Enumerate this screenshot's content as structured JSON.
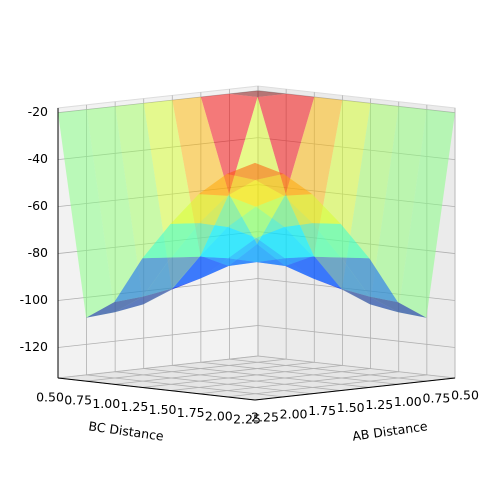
{
  "chart_data": {
    "type": "surface3d",
    "x_label": "AB Distance",
    "y_label": "BC Distance",
    "x": [
      0.5,
      0.75,
      1.0,
      1.25,
      1.5,
      1.75,
      2.0,
      2.25
    ],
    "y": [
      0.5,
      0.75,
      1.0,
      1.25,
      1.5,
      1.75,
      2.0,
      2.25
    ],
    "z": [
      [
        -20,
        -20,
        -20,
        -20,
        -20,
        -20,
        -20,
        -20
      ],
      [
        -20,
        -20,
        -60,
        -85,
        -98,
        -103,
        -105,
        -106
      ],
      [
        -20,
        -60,
        -80,
        -88,
        -92,
        -95,
        -97,
        -98
      ],
      [
        -20,
        -85,
        -88,
        -85,
        -82,
        -80,
        -79,
        -78
      ],
      [
        -20,
        -98,
        -92,
        -82,
        -72,
        -66,
        -63,
        -62
      ],
      [
        -20,
        -103,
        -95,
        -80,
        -66,
        -56,
        -50,
        -48
      ],
      [
        -20,
        -105,
        -97,
        -79,
        -63,
        -50,
        -42,
        -38
      ],
      [
        -20,
        -106,
        -98,
        -78,
        -62,
        -48,
        -38,
        -32
      ]
    ],
    "xlim": [
      0.5,
      2.25
    ],
    "ylim": [
      0.5,
      2.25
    ],
    "zlim": [
      -133,
      -18
    ],
    "xticks": [
      {
        "value": 0.5,
        "label": "0.50"
      },
      {
        "value": 0.75,
        "label": "0.75"
      },
      {
        "value": 1.0,
        "label": "1.00"
      },
      {
        "value": 1.25,
        "label": "1.25"
      },
      {
        "value": 1.5,
        "label": "1.50"
      },
      {
        "value": 1.75,
        "label": "1.75"
      },
      {
        "value": 2.0,
        "label": "2.00"
      },
      {
        "value": 2.25,
        "label": "2.25"
      }
    ],
    "yticks": [
      {
        "value": 0.5,
        "label": "0.50"
      },
      {
        "value": 0.75,
        "label": "0.75"
      },
      {
        "value": 1.0,
        "label": "1.00"
      },
      {
        "value": 1.25,
        "label": "1.25"
      },
      {
        "value": 1.5,
        "label": "1.50"
      },
      {
        "value": 1.75,
        "label": "1.75"
      },
      {
        "value": 2.0,
        "label": "2.00"
      },
      {
        "value": 2.25,
        "label": "2.25"
      }
    ],
    "zticks": [
      -120,
      -100,
      -80,
      -60,
      -40,
      -20
    ],
    "colormap": "jet",
    "alpha": 0.5,
    "grid": true
  }
}
